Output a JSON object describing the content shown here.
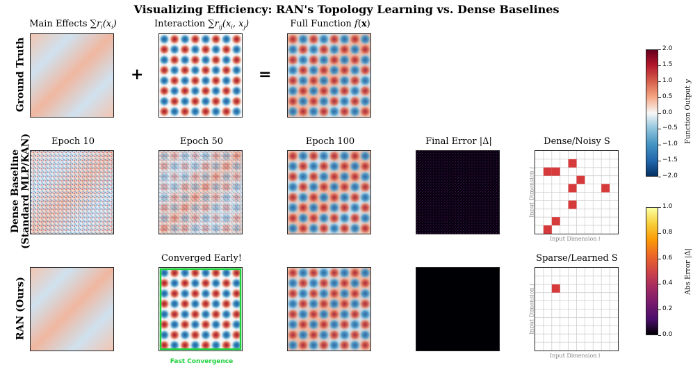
{
  "title": "Visualizing Efficiency: RAN's Topology Learning vs. Dense Baselines",
  "columns_top": {
    "main_effects": "Main Effects ∑r_i(x_i)",
    "interaction": "Interaction ∑r_ij(x_i, x_j)",
    "full_function": "Full Function f(x)"
  },
  "operators": {
    "plus": "+",
    "equals": "="
  },
  "row_labels": {
    "ground_truth": "Ground Truth",
    "dense_line1": "Dense Baseline",
    "dense_line2": "(Standard MLP/KAN)",
    "ran": "RAN (Ours)"
  },
  "dense_titles": {
    "epoch10": "Epoch 10",
    "epoch50": "Epoch 50",
    "epoch100": "Epoch 100",
    "final_error": "Final Error |Δ|",
    "topology": "Dense/Noisy S"
  },
  "ran_titles": {
    "converged": "Converged Early!",
    "topology": "Sparse/Learned S",
    "fast": "Fast Convergence"
  },
  "topology_axes": {
    "x": "Input Dimension i",
    "y": "Input Dimension j"
  },
  "colorbar_function": {
    "label": "Function Output y",
    "ticks": [
      "2.0",
      "1.5",
      "1.0",
      "0.5",
      "0.0",
      "−0.5",
      "−1.0",
      "−1.5",
      "−2.0"
    ],
    "colors": [
      "#67001f",
      "#d6604d",
      "#f7f7f7",
      "#4393c3",
      "#053061"
    ]
  },
  "colorbar_error": {
    "label": "Abs Error |Δ|",
    "ticks": [
      "1.0",
      "0.8",
      "0.6",
      "0.4",
      "0.2",
      "0.0"
    ],
    "colors": [
      "#fcffa4",
      "#f98e09",
      "#bc3754",
      "#57106e",
      "#000004"
    ]
  },
  "dense_topology_cells": [
    [
      1,
      2
    ],
    [
      2,
      2
    ],
    [
      4,
      1
    ],
    [
      5,
      3
    ],
    [
      4,
      4
    ],
    [
      8,
      4
    ],
    [
      4,
      6
    ],
    [
      2,
      8
    ],
    [
      1,
      9
    ]
  ],
  "ran_topology_cells": [
    [
      2,
      2
    ]
  ]
}
